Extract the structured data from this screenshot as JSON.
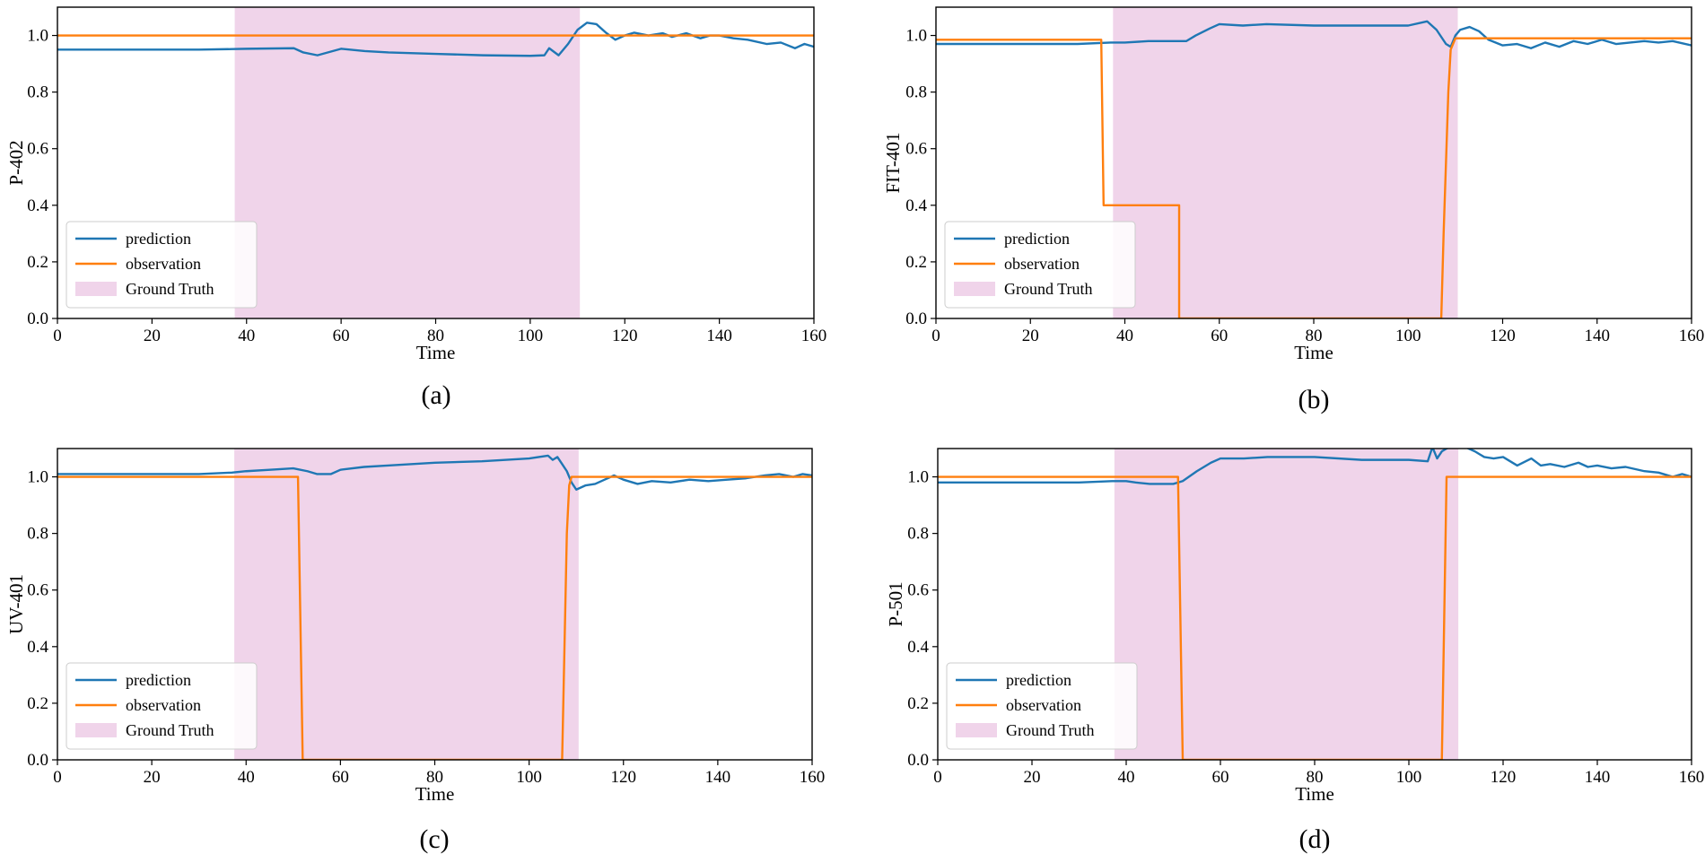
{
  "figure": {
    "colors": {
      "prediction": "#1f77b4",
      "observation": "#ff7f0e",
      "ground_truth": "#e6b8dc"
    },
    "legend_labels": [
      "prediction",
      "observation",
      "Ground Truth"
    ]
  },
  "chart_data": [
    {
      "type": "line",
      "panel_label": "(a)",
      "title": "",
      "xlabel": "Time",
      "ylabel": "P-402",
      "xlim": [
        0,
        160
      ],
      "ylim": [
        0,
        1.1
      ],
      "xticks": [
        0,
        20,
        40,
        60,
        80,
        100,
        120,
        140,
        160
      ],
      "yticks": [
        0.0,
        0.2,
        0.4,
        0.6,
        0.8,
        1.0
      ],
      "ytick_labels": [
        "0.0",
        "0.2",
        "0.4",
        "0.6",
        "0.8",
        "1.0"
      ],
      "legend_location": "lower-left",
      "ground_truth_span": [
        37.5,
        110.5
      ],
      "series": [
        {
          "name": "prediction",
          "x": [
            0,
            10,
            20,
            30,
            37,
            40,
            50,
            52,
            55,
            60,
            65,
            70,
            80,
            90,
            100,
            103,
            104,
            106,
            108,
            110,
            112,
            114,
            116,
            118,
            120,
            122,
            125,
            128,
            130,
            133,
            136,
            138,
            140,
            143,
            146,
            150,
            153,
            156,
            158,
            160
          ],
          "values": [
            0.95,
            0.95,
            0.95,
            0.95,
            0.952,
            0.953,
            0.955,
            0.94,
            0.93,
            0.953,
            0.945,
            0.94,
            0.935,
            0.93,
            0.928,
            0.93,
            0.955,
            0.93,
            0.97,
            1.02,
            1.045,
            1.04,
            1.01,
            0.985,
            1.0,
            1.01,
            1.0,
            1.008,
            0.995,
            1.008,
            0.99,
            1.0,
            1.0,
            0.99,
            0.985,
            0.97,
            0.975,
            0.955,
            0.97,
            0.96
          ]
        },
        {
          "name": "observation",
          "x": [
            0,
            160
          ],
          "values": [
            1.0,
            1.0
          ]
        }
      ]
    },
    {
      "type": "line",
      "panel_label": "(b)",
      "title": "",
      "xlabel": "Time",
      "ylabel": "FIT-401",
      "xlim": [
        0,
        160
      ],
      "ylim": [
        0,
        1.1
      ],
      "xticks": [
        0,
        20,
        40,
        60,
        80,
        100,
        120,
        140,
        160
      ],
      "yticks": [
        0.0,
        0.2,
        0.4,
        0.6,
        0.8,
        1.0
      ],
      "ytick_labels": [
        "0.0",
        "0.2",
        "0.4",
        "0.6",
        "0.8",
        "1.0"
      ],
      "legend_location": "lower-left",
      "ground_truth_span": [
        37.5,
        110.5
      ],
      "series": [
        {
          "name": "prediction",
          "x": [
            0,
            10,
            20,
            30,
            37,
            40,
            45,
            50,
            53,
            55,
            58,
            60,
            65,
            70,
            80,
            90,
            100,
            104,
            106,
            108,
            109,
            110,
            111,
            113,
            115,
            117,
            120,
            123,
            126,
            129,
            132,
            135,
            138,
            141,
            144,
            147,
            150,
            153,
            156,
            160
          ],
          "values": [
            0.97,
            0.97,
            0.97,
            0.97,
            0.975,
            0.975,
            0.98,
            0.98,
            0.98,
            1.0,
            1.025,
            1.04,
            1.035,
            1.04,
            1.035,
            1.035,
            1.035,
            1.05,
            1.02,
            0.97,
            0.96,
            1.0,
            1.02,
            1.03,
            1.015,
            0.985,
            0.965,
            0.97,
            0.955,
            0.975,
            0.96,
            0.98,
            0.97,
            0.985,
            0.97,
            0.975,
            0.98,
            0.975,
            0.98,
            0.965
          ]
        },
        {
          "name": "observation",
          "x": [
            0,
            35,
            35.5,
            51.5,
            51.5,
            107,
            107.5,
            108,
            108.5,
            109,
            110,
            112,
            160
          ],
          "values": [
            0.985,
            0.985,
            0.4,
            0.4,
            0.0,
            0.0,
            0.3,
            0.55,
            0.8,
            0.95,
            0.99,
            0.99,
            0.99
          ]
        }
      ]
    },
    {
      "type": "line",
      "panel_label": "(c)",
      "title": "",
      "xlabel": "Time",
      "ylabel": "UV-401",
      "xlim": [
        0,
        160
      ],
      "ylim": [
        0,
        1.1
      ],
      "xticks": [
        0,
        20,
        40,
        60,
        80,
        100,
        120,
        140,
        160
      ],
      "yticks": [
        0.0,
        0.2,
        0.4,
        0.6,
        0.8,
        1.0
      ],
      "ytick_labels": [
        "0.0",
        "0.2",
        "0.4",
        "0.6",
        "0.8",
        "1.0"
      ],
      "legend_location": "lower-left",
      "ground_truth_span": [
        37.5,
        110.5
      ],
      "series": [
        {
          "name": "prediction",
          "x": [
            0,
            10,
            20,
            30,
            37,
            40,
            45,
            50,
            53,
            55,
            58,
            60,
            65,
            70,
            80,
            90,
            100,
            104,
            105,
            106,
            107,
            108,
            109,
            110,
            112,
            114,
            116,
            118,
            120,
            123,
            126,
            130,
            134,
            138,
            142,
            146,
            150,
            153,
            156,
            158,
            160
          ],
          "values": [
            1.01,
            1.01,
            1.01,
            1.01,
            1.015,
            1.02,
            1.025,
            1.03,
            1.02,
            1.01,
            1.01,
            1.025,
            1.035,
            1.04,
            1.05,
            1.055,
            1.065,
            1.075,
            1.06,
            1.07,
            1.045,
            1.02,
            0.98,
            0.955,
            0.97,
            0.975,
            0.99,
            1.005,
            0.99,
            0.975,
            0.985,
            0.98,
            0.99,
            0.985,
            0.99,
            0.995,
            1.005,
            1.01,
            1.0,
            1.01,
            1.005
          ]
        },
        {
          "name": "observation",
          "x": [
            0,
            51,
            52,
            107,
            107.5,
            108,
            108.5,
            109,
            160
          ],
          "values": [
            1.0,
            1.0,
            0.0,
            0.0,
            0.4,
            0.8,
            0.97,
            1.0,
            1.0
          ]
        }
      ]
    },
    {
      "type": "line",
      "panel_label": "(d)",
      "title": "",
      "xlabel": "Time",
      "ylabel": "P-501",
      "xlim": [
        0,
        160
      ],
      "ylim": [
        0,
        1.1
      ],
      "xticks": [
        0,
        20,
        40,
        60,
        80,
        100,
        120,
        140,
        160
      ],
      "yticks": [
        0.0,
        0.2,
        0.4,
        0.6,
        0.8,
        1.0
      ],
      "ytick_labels": [
        "0.0",
        "0.2",
        "0.4",
        "0.6",
        "0.8",
        "1.0"
      ],
      "legend_location": "lower-left",
      "ground_truth_span": [
        37.5,
        110.5
      ],
      "series": [
        {
          "name": "prediction",
          "x": [
            0,
            10,
            20,
            30,
            37,
            40,
            42,
            45,
            50,
            52,
            55,
            58,
            60,
            65,
            70,
            80,
            90,
            100,
            104,
            105,
            106,
            107,
            108,
            110,
            112,
            114,
            116,
            118,
            120,
            123,
            126,
            128,
            130,
            133,
            136,
            138,
            140,
            143,
            146,
            150,
            153,
            156,
            158,
            160
          ],
          "values": [
            0.98,
            0.98,
            0.98,
            0.98,
            0.985,
            0.985,
            0.98,
            0.975,
            0.975,
            0.985,
            1.02,
            1.05,
            1.065,
            1.065,
            1.07,
            1.07,
            1.06,
            1.06,
            1.055,
            1.105,
            1.065,
            1.09,
            1.1,
            1.115,
            1.105,
            1.09,
            1.07,
            1.065,
            1.07,
            1.04,
            1.065,
            1.04,
            1.045,
            1.035,
            1.05,
            1.035,
            1.04,
            1.03,
            1.035,
            1.02,
            1.015,
            1.0,
            1.01,
            1.0
          ]
        },
        {
          "name": "observation",
          "x": [
            0,
            51,
            52,
            107,
            107.5,
            108,
            160
          ],
          "values": [
            1.0,
            1.0,
            0.0,
            0.0,
            0.5,
            1.0,
            1.0
          ]
        }
      ]
    }
  ]
}
